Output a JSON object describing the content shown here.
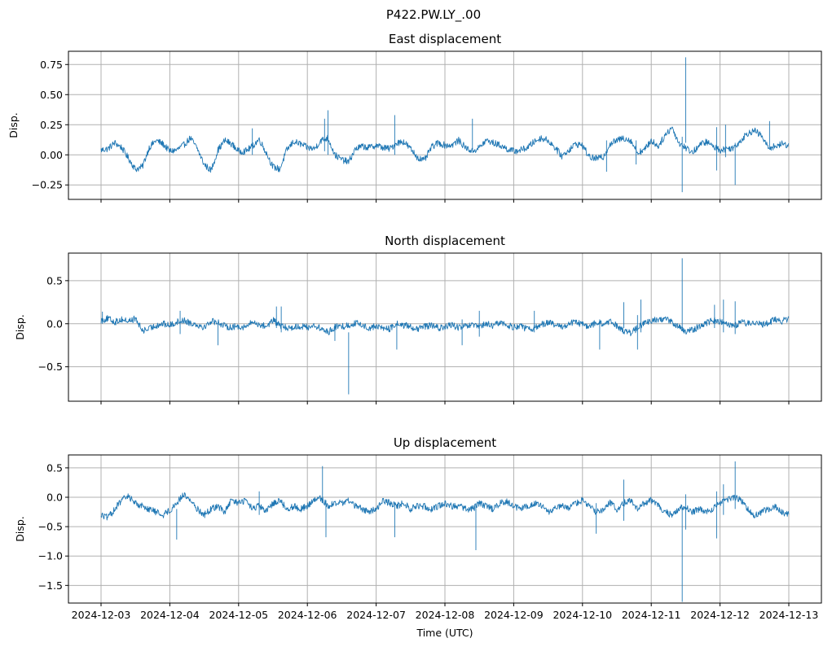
{
  "figure_title": "P422.PW.LY_.00",
  "colors": {
    "series": "#1f77b4",
    "grid": "#b0b0b0",
    "background": "#ffffff"
  },
  "chart_data": [
    {
      "type": "line",
      "title": "East displacement",
      "ylabel": "Disp.",
      "xlabel": "",
      "x_range": [
        "2024-12-03",
        "2024-12-13"
      ],
      "ylim": [
        -0.37,
        0.86
      ],
      "yticks": [
        -0.25,
        0.0,
        0.25,
        0.5,
        0.75
      ],
      "ytick_labels": [
        "−0.25",
        "0.00",
        "0.25",
        "0.50",
        "0.75"
      ],
      "grid": true,
      "show_xtick_labels": false,
      "series": [
        {
          "color": "#1f77b4",
          "x_days": [
            0.0,
            0.1,
            0.2,
            0.3,
            0.4,
            0.5,
            0.6,
            0.7,
            0.8,
            0.9,
            1.0,
            1.1,
            1.2,
            1.3,
            1.4,
            1.5,
            1.6,
            1.7,
            1.8,
            1.9,
            2.0,
            2.1,
            2.2,
            2.3,
            2.4,
            2.5,
            2.6,
            2.7,
            2.8,
            2.9,
            3.0,
            3.1,
            3.2,
            3.3,
            3.4,
            3.5,
            3.6,
            3.7,
            3.8,
            3.9,
            4.0,
            4.1,
            4.2,
            4.3,
            4.4,
            4.5,
            4.6,
            4.7,
            4.8,
            4.9,
            5.0,
            5.1,
            5.2,
            5.3,
            5.4,
            5.5,
            5.6,
            5.7,
            5.8,
            5.9,
            6.0,
            6.1,
            6.2,
            6.3,
            6.4,
            6.5,
            6.6,
            6.7,
            6.8,
            6.9,
            7.0,
            7.1,
            7.2,
            7.3,
            7.4,
            7.5,
            7.6,
            7.7,
            7.8,
            7.9,
            8.0,
            8.1,
            8.2,
            8.3,
            8.4,
            8.5,
            8.6,
            8.7,
            8.8,
            8.9,
            9.0,
            9.1,
            9.2,
            9.3,
            9.4,
            9.5,
            9.6,
            9.7,
            9.8,
            9.9,
            10.0
          ],
          "values": [
            0.04,
            0.05,
            0.1,
            0.06,
            -0.03,
            -0.12,
            -0.1,
            0.06,
            0.12,
            0.09,
            0.03,
            0.04,
            0.08,
            0.14,
            0.05,
            -0.08,
            -0.13,
            0.04,
            0.12,
            0.09,
            0.03,
            0.03,
            0.07,
            0.13,
            0.02,
            -0.1,
            -0.12,
            0.04,
            0.11,
            0.09,
            0.06,
            0.05,
            0.12,
            0.14,
            0.0,
            -0.04,
            -0.06,
            0.05,
            0.07,
            0.06,
            0.08,
            0.06,
            0.05,
            0.1,
            0.11,
            0.05,
            -0.02,
            -0.05,
            0.06,
            0.1,
            0.08,
            0.08,
            0.12,
            0.06,
            0.03,
            0.06,
            0.12,
            0.1,
            0.08,
            0.05,
            0.03,
            0.04,
            0.06,
            0.11,
            0.14,
            0.12,
            0.06,
            -0.01,
            0.04,
            0.09,
            0.08,
            -0.02,
            -0.03,
            -0.02,
            0.09,
            0.12,
            0.14,
            0.12,
            0.02,
            0.04,
            0.12,
            0.07,
            0.16,
            0.23,
            0.1,
            0.06,
            0.02,
            0.08,
            0.11,
            0.07,
            0.04,
            0.05,
            0.06,
            0.12,
            0.18,
            0.2,
            0.16,
            0.06,
            0.07,
            0.09,
            0.08
          ]
        }
      ],
      "spikes": [
        {
          "x_days": 2.2,
          "low": 0.0,
          "high": 0.22
        },
        {
          "x_days": 3.25,
          "low": 0.03,
          "high": 0.3
        },
        {
          "x_days": 3.3,
          "low": 0.0,
          "high": 0.37
        },
        {
          "x_days": 4.27,
          "low": 0.0,
          "high": 0.33
        },
        {
          "x_days": 5.4,
          "low": 0.05,
          "high": 0.3
        },
        {
          "x_days": 7.35,
          "low": -0.14,
          "high": 0.12
        },
        {
          "x_days": 7.78,
          "low": -0.08,
          "high": 0.12
        },
        {
          "x_days": 8.45,
          "low": -0.31,
          "high": 0.15
        },
        {
          "x_days": 8.5,
          "low": 0.1,
          "high": 0.81
        },
        {
          "x_days": 8.95,
          "low": -0.13,
          "high": 0.23
        },
        {
          "x_days": 9.08,
          "low": -0.02,
          "high": 0.25
        },
        {
          "x_days": 9.22,
          "low": -0.25,
          "high": 0.1
        },
        {
          "x_days": 9.72,
          "low": 0.05,
          "high": 0.28
        }
      ]
    },
    {
      "type": "line",
      "title": "North displacement",
      "ylabel": "Disp.",
      "xlabel": "",
      "x_range": [
        "2024-12-03",
        "2024-12-13"
      ],
      "ylim": [
        -0.9,
        0.82
      ],
      "yticks": [
        -0.5,
        0.0,
        0.5
      ],
      "ytick_labels": [
        "−0.5",
        "0.0",
        "0.5"
      ],
      "grid": true,
      "show_xtick_labels": false,
      "series": [
        {
          "color": "#1f77b4",
          "x_days": [
            0.0,
            0.1,
            0.2,
            0.3,
            0.4,
            0.5,
            0.6,
            0.7,
            0.8,
            0.9,
            1.0,
            1.1,
            1.2,
            1.3,
            1.4,
            1.5,
            1.6,
            1.7,
            1.8,
            1.9,
            2.0,
            2.1,
            2.2,
            2.3,
            2.4,
            2.5,
            2.6,
            2.7,
            2.8,
            2.9,
            3.0,
            3.1,
            3.2,
            3.3,
            3.4,
            3.5,
            3.6,
            3.7,
            3.8,
            3.9,
            4.0,
            4.1,
            4.2,
            4.3,
            4.4,
            4.5,
            4.6,
            4.7,
            4.8,
            4.9,
            5.0,
            5.1,
            5.2,
            5.3,
            5.4,
            5.5,
            5.6,
            5.7,
            5.8,
            5.9,
            6.0,
            6.1,
            6.2,
            6.3,
            6.4,
            6.5,
            6.6,
            6.7,
            6.8,
            6.9,
            7.0,
            7.1,
            7.2,
            7.3,
            7.4,
            7.5,
            7.6,
            7.7,
            7.8,
            7.9,
            8.0,
            8.1,
            8.2,
            8.3,
            8.4,
            8.5,
            8.6,
            8.7,
            8.8,
            8.9,
            9.0,
            9.1,
            9.2,
            9.3,
            9.4,
            9.5,
            9.6,
            9.7,
            9.8,
            9.9,
            10.0
          ],
          "values": [
            0.04,
            0.06,
            0.02,
            0.05,
            0.03,
            0.06,
            -0.08,
            -0.06,
            -0.02,
            0.0,
            -0.02,
            0.02,
            0.04,
            0.01,
            -0.01,
            -0.04,
            0.03,
            0.02,
            -0.03,
            -0.04,
            -0.03,
            -0.04,
            0.02,
            -0.01,
            -0.03,
            0.04,
            -0.02,
            -0.05,
            -0.04,
            -0.03,
            -0.04,
            -0.02,
            -0.06,
            -0.1,
            -0.04,
            -0.03,
            -0.02,
            0.01,
            -0.02,
            -0.05,
            -0.03,
            -0.05,
            -0.06,
            0.0,
            -0.02,
            -0.03,
            -0.07,
            -0.03,
            -0.02,
            -0.05,
            -0.04,
            -0.01,
            -0.05,
            -0.03,
            -0.02,
            -0.04,
            0.0,
            -0.03,
            0.02,
            -0.02,
            -0.04,
            -0.02,
            -0.07,
            -0.05,
            -0.01,
            0.02,
            -0.02,
            -0.04,
            0.0,
            0.02,
            -0.01,
            -0.04,
            0.02,
            -0.01,
            0.02,
            -0.02,
            -0.08,
            -0.11,
            -0.05,
            0.01,
            0.03,
            0.05,
            0.06,
            0.02,
            -0.04,
            -0.1,
            -0.07,
            -0.03,
            0.01,
            0.04,
            0.03,
            0.01,
            -0.03,
            0.02,
            0.0,
            0.03,
            -0.02,
            0.01,
            0.05,
            0.03,
            0.06
          ]
        }
      ],
      "spikes": [
        {
          "x_days": 0.02,
          "low": 0.0,
          "high": 0.14
        },
        {
          "x_days": 1.15,
          "low": -0.12,
          "high": 0.15
        },
        {
          "x_days": 1.7,
          "low": -0.25,
          "high": 0.0
        },
        {
          "x_days": 2.55,
          "low": -0.05,
          "high": 0.2
        },
        {
          "x_days": 2.62,
          "low": -0.1,
          "high": 0.2
        },
        {
          "x_days": 3.4,
          "low": -0.2,
          "high": 0.0
        },
        {
          "x_days": 3.6,
          "low": -0.82,
          "high": -0.1
        },
        {
          "x_days": 4.3,
          "low": -0.3,
          "high": 0.0
        },
        {
          "x_days": 5.25,
          "low": -0.25,
          "high": 0.05
        },
        {
          "x_days": 5.5,
          "low": -0.15,
          "high": 0.15
        },
        {
          "x_days": 6.3,
          "low": -0.1,
          "high": 0.15
        },
        {
          "x_days": 7.25,
          "low": -0.3,
          "high": 0.05
        },
        {
          "x_days": 7.6,
          "low": -0.05,
          "high": 0.25
        },
        {
          "x_days": 7.8,
          "low": -0.3,
          "high": 0.1
        },
        {
          "x_days": 7.85,
          "low": -0.1,
          "high": 0.28
        },
        {
          "x_days": 8.45,
          "low": -0.05,
          "high": 0.76
        },
        {
          "x_days": 8.92,
          "low": -0.05,
          "high": 0.22
        },
        {
          "x_days": 9.05,
          "low": -0.1,
          "high": 0.28
        },
        {
          "x_days": 9.22,
          "low": -0.12,
          "high": 0.26
        }
      ]
    },
    {
      "type": "line",
      "title": "Up displacement",
      "ylabel": "Disp.",
      "xlabel": "Time (UTC)",
      "x_range": [
        "2024-12-03",
        "2024-12-13"
      ],
      "ylim": [
        -1.8,
        0.72
      ],
      "yticks": [
        -1.5,
        -1.0,
        -0.5,
        0.0,
        0.5
      ],
      "ytick_labels": [
        "−1.5",
        "−1.0",
        "−0.5",
        "0.0",
        "0.5"
      ],
      "grid": true,
      "show_xtick_labels": true,
      "xtick_labels": [
        "2024-12-03",
        "2024-12-04",
        "2024-12-05",
        "2024-12-06",
        "2024-12-07",
        "2024-12-08",
        "2024-12-09",
        "2024-12-10",
        "2024-12-11",
        "2024-12-12",
        "2024-12-13"
      ],
      "series": [
        {
          "color": "#1f77b4",
          "x_days": [
            0.0,
            0.1,
            0.2,
            0.3,
            0.4,
            0.5,
            0.6,
            0.7,
            0.8,
            0.9,
            1.0,
            1.1,
            1.2,
            1.3,
            1.4,
            1.5,
            1.6,
            1.7,
            1.8,
            1.9,
            2.0,
            2.1,
            2.2,
            2.3,
            2.4,
            2.5,
            2.6,
            2.7,
            2.8,
            2.9,
            3.0,
            3.1,
            3.2,
            3.3,
            3.4,
            3.5,
            3.6,
            3.7,
            3.8,
            3.9,
            4.0,
            4.1,
            4.2,
            4.3,
            4.4,
            4.5,
            4.6,
            4.7,
            4.8,
            4.9,
            5.0,
            5.1,
            5.2,
            5.3,
            5.4,
            5.5,
            5.6,
            5.7,
            5.8,
            5.9,
            6.0,
            6.1,
            6.2,
            6.3,
            6.4,
            6.5,
            6.6,
            6.7,
            6.8,
            6.9,
            7.0,
            7.1,
            7.2,
            7.3,
            7.4,
            7.5,
            7.6,
            7.7,
            7.8,
            7.9,
            8.0,
            8.1,
            8.2,
            8.3,
            8.4,
            8.5,
            8.6,
            8.7,
            8.8,
            8.9,
            9.0,
            9.1,
            9.2,
            9.3,
            9.4,
            9.5,
            9.6,
            9.7,
            9.8,
            9.9,
            10.0
          ],
          "values": [
            -0.3,
            -0.35,
            -0.2,
            -0.05,
            0.02,
            -0.1,
            -0.15,
            -0.2,
            -0.25,
            -0.3,
            -0.22,
            -0.1,
            0.05,
            -0.05,
            -0.2,
            -0.3,
            -0.2,
            -0.15,
            -0.25,
            -0.05,
            -0.1,
            -0.05,
            -0.2,
            -0.15,
            -0.25,
            -0.1,
            -0.05,
            -0.2,
            -0.15,
            -0.2,
            -0.15,
            -0.05,
            -0.02,
            -0.15,
            -0.1,
            -0.1,
            -0.05,
            -0.15,
            -0.2,
            -0.25,
            -0.2,
            -0.05,
            -0.1,
            -0.15,
            -0.1,
            -0.2,
            -0.15,
            -0.15,
            -0.2,
            -0.15,
            -0.1,
            -0.15,
            -0.15,
            -0.2,
            -0.2,
            -0.1,
            -0.15,
            -0.2,
            -0.1,
            -0.08,
            -0.15,
            -0.2,
            -0.15,
            -0.1,
            -0.15,
            -0.25,
            -0.2,
            -0.15,
            -0.2,
            -0.1,
            -0.05,
            -0.15,
            -0.25,
            -0.2,
            -0.1,
            -0.2,
            -0.1,
            -0.05,
            -0.2,
            -0.1,
            -0.05,
            -0.15,
            -0.25,
            -0.3,
            -0.2,
            -0.15,
            -0.25,
            -0.2,
            -0.25,
            -0.2,
            -0.1,
            -0.05,
            0.0,
            -0.05,
            -0.2,
            -0.3,
            -0.25,
            -0.2,
            -0.15,
            -0.25,
            -0.3
          ]
        }
      ],
      "spikes": [
        {
          "x_days": 1.1,
          "low": -0.72,
          "high": -0.2
        },
        {
          "x_days": 2.3,
          "low": -0.3,
          "high": 0.1
        },
        {
          "x_days": 3.22,
          "low": -0.1,
          "high": 0.53
        },
        {
          "x_days": 3.27,
          "low": -0.68,
          "high": -0.05
        },
        {
          "x_days": 4.27,
          "low": -0.68,
          "high": -0.1
        },
        {
          "x_days": 5.45,
          "low": -0.9,
          "high": -0.1
        },
        {
          "x_days": 7.2,
          "low": -0.62,
          "high": -0.1
        },
        {
          "x_days": 7.6,
          "low": -0.4,
          "high": 0.3
        },
        {
          "x_days": 8.45,
          "low": -1.78,
          "high": -0.2
        },
        {
          "x_days": 8.5,
          "low": -0.55,
          "high": 0.05
        },
        {
          "x_days": 8.95,
          "low": -0.7,
          "high": 0.1
        },
        {
          "x_days": 9.05,
          "low": -0.3,
          "high": 0.22
        },
        {
          "x_days": 9.22,
          "low": -0.2,
          "high": 0.61
        }
      ]
    }
  ]
}
